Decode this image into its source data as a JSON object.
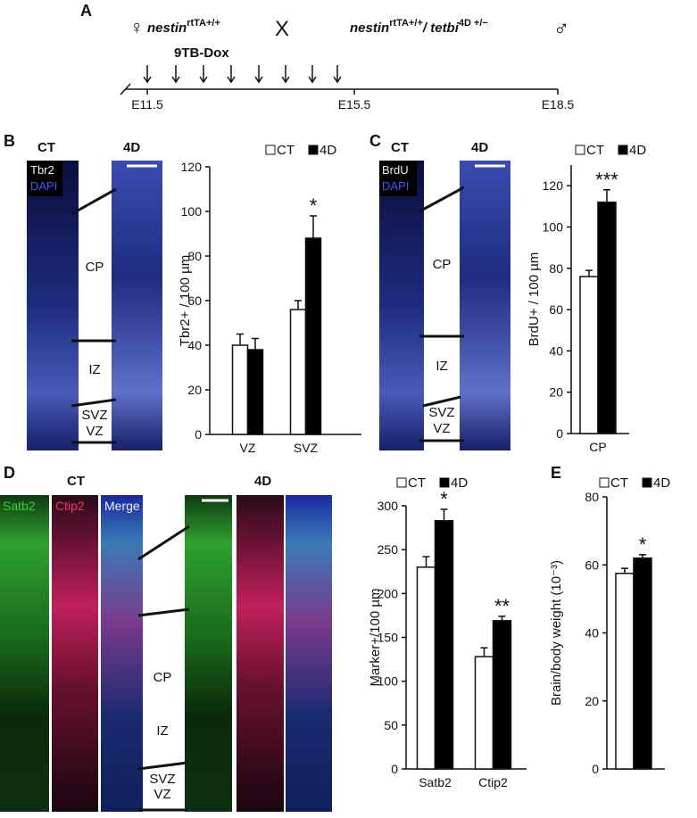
{
  "panel_a": {
    "label": "A",
    "female": "♀",
    "male": "♂",
    "cross": "X",
    "mother": {
      "gene": "nestin",
      "allele": "rtTA+/+"
    },
    "father": {
      "gene": "nestin",
      "allele": "rtTA+/+",
      "gene2": "/ tetbi",
      "allele2": "4D +/−"
    },
    "treatment": "9TB-Dox",
    "timepoints": [
      "E11.5",
      "E15.5",
      "E18.5"
    ]
  },
  "images": {
    "B": {
      "label": "B",
      "groups": [
        "CT",
        "4D"
      ],
      "stains": [
        "Tbr2",
        "DAPI"
      ],
      "zones": [
        "CP",
        "IZ",
        "SVZ",
        "VZ"
      ]
    },
    "C": {
      "label": "C",
      "groups": [
        "CT",
        "4D"
      ],
      "stains": [
        "BrdU",
        "DAPI"
      ],
      "zones": [
        "CP",
        "IZ",
        "SVZ",
        "VZ"
      ]
    },
    "D": {
      "label": "D",
      "groups": [
        "CT",
        "4D"
      ],
      "stains": [
        "Satb2",
        "Ctip2",
        "Merge"
      ],
      "zones": [
        "CP",
        "IZ",
        "SVZ",
        "VZ"
      ]
    },
    "E": {
      "label": "E"
    }
  },
  "chart_data": [
    {
      "type": "bar",
      "ylabel": "Tbr2+ / 100 µm",
      "categories": [
        "VZ",
        "SVZ"
      ],
      "series": [
        {
          "name": "CT",
          "color": "#ffffff",
          "values": [
            40,
            56
          ],
          "errors": [
            5,
            4
          ]
        },
        {
          "name": "4D",
          "color": "#000000",
          "values": [
            38,
            88
          ],
          "errors": [
            5,
            10
          ]
        }
      ],
      "significance": [
        null,
        "*"
      ],
      "ylim": [
        0,
        120
      ],
      "yticks": [
        0,
        20,
        40,
        60,
        80,
        100,
        120
      ]
    },
    {
      "type": "bar",
      "ylabel": "BrdU+ / 100 µm",
      "categories": [
        "CP"
      ],
      "series": [
        {
          "name": "CT",
          "color": "#ffffff",
          "values": [
            76
          ],
          "errors": [
            3
          ]
        },
        {
          "name": "4D",
          "color": "#000000",
          "values": [
            112
          ],
          "errors": [
            6
          ]
        }
      ],
      "significance": [
        "***"
      ],
      "ylim": [
        0,
        130
      ],
      "yticks": [
        0,
        20,
        40,
        60,
        80,
        100,
        120
      ]
    },
    {
      "type": "bar",
      "ylabel": "Marker+/100 µm",
      "categories": [
        "Satb2",
        "Ctip2"
      ],
      "series": [
        {
          "name": "CT",
          "color": "#ffffff",
          "values": [
            230,
            128
          ],
          "errors": [
            12,
            10
          ]
        },
        {
          "name": "4D",
          "color": "#000000",
          "values": [
            283,
            169
          ],
          "errors": [
            13,
            5
          ]
        }
      ],
      "significance": [
        "*",
        "**"
      ],
      "ylim": [
        0,
        300
      ],
      "yticks": [
        0,
        50,
        100,
        150,
        200,
        250,
        300
      ]
    },
    {
      "type": "bar",
      "ylabel": "Brain/body weight (10⁻³)",
      "categories": [
        null
      ],
      "series": [
        {
          "name": "CT",
          "color": "#ffffff",
          "values": [
            57.5
          ],
          "errors": [
            1.5
          ]
        },
        {
          "name": "4D",
          "color": "#000000",
          "values": [
            62
          ],
          "errors": [
            1
          ]
        }
      ],
      "significance": [
        "*"
      ],
      "ylim": [
        0,
        80
      ],
      "yticks": [
        0,
        20,
        40,
        60,
        80
      ]
    }
  ]
}
